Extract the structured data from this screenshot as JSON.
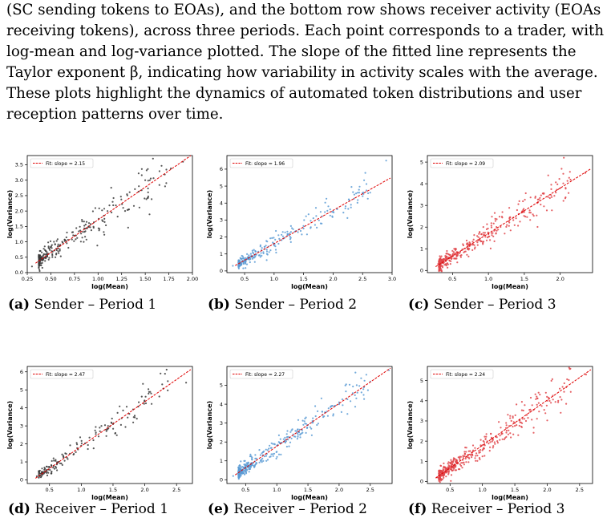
{
  "caption": {
    "text": "(SC sending tokens to EOAs), and the bottom row shows receiver activity (EOAs receiving tokens), across three periods. Each point corresponds to a trader, with log-mean and log-variance plotted. The slope of the fitted line represents the Taylor exponent β, indicating how variability in activity scales with the average. These plots highlight the dynamics of automated token distributions and user reception patterns over time."
  },
  "colors": {
    "grey": "#3a3a3a",
    "blue": "#5b9bd5",
    "red_points": "#e0454a",
    "fit_line": "#e00000"
  },
  "chart_data": [
    {
      "type": "scatter",
      "id": "a",
      "tag": "(a)",
      "label": "Sender – Period 1",
      "xlabel": "log(Mean)",
      "ylabel": "log(Variance)",
      "xlim": [
        0.25,
        2.0
      ],
      "ylim": [
        0.0,
        3.8
      ],
      "xticks": [
        "0.25",
        "0.50",
        "0.75",
        "1.00",
        "1.25",
        "1.50",
        "1.75",
        "2.00"
      ],
      "yticks": [
        "0.0",
        "0.5",
        "1.0",
        "1.5",
        "2.0",
        "2.5",
        "3.0",
        "3.5"
      ],
      "legend": "Fit: slope = 2.15",
      "legend_position": "top-left",
      "slope": 2.15,
      "intercept": -0.42,
      "point_color": "grey",
      "n_points": 260,
      "sample_points": [
        [
          0.3,
          0.2
        ],
        [
          0.45,
          0.5
        ],
        [
          0.6,
          0.9
        ],
        [
          0.75,
          1.2
        ],
        [
          0.9,
          1.5
        ],
        [
          1.1,
          2.0
        ],
        [
          1.5,
          3.0
        ],
        [
          1.9,
          3.6
        ]
      ]
    },
    {
      "type": "scatter",
      "id": "b",
      "tag": "(b)",
      "label": "Sender – Period 2",
      "xlabel": "log(Mean)",
      "ylabel": "log(Variance)",
      "xlim": [
        0.2,
        3.0
      ],
      "ylim": [
        -0.1,
        6.8
      ],
      "xticks": [
        "0.5",
        "1.0",
        "1.5",
        "2.0",
        "2.5",
        "3.0"
      ],
      "yticks": [
        "0",
        "1",
        "2",
        "3",
        "4",
        "5",
        "6"
      ],
      "legend": "Fit: slope = 1.96",
      "legend_position": "top-left",
      "slope": 1.96,
      "intercept": -0.35,
      "point_color": "blue",
      "n_points": 240,
      "sample_points": [
        [
          0.3,
          0.3
        ],
        [
          0.5,
          0.6
        ],
        [
          1.0,
          1.5
        ],
        [
          1.5,
          2.5
        ],
        [
          2.0,
          3.5
        ],
        [
          2.5,
          4.6
        ],
        [
          2.9,
          6.5
        ]
      ]
    },
    {
      "type": "scatter",
      "id": "c",
      "tag": "(c)",
      "label": "Sender – Period 3",
      "xlabel": "log(Mean)",
      "ylabel": "log(Variance)",
      "xlim": [
        0.15,
        2.45
      ],
      "ylim": [
        -0.1,
        5.3
      ],
      "xticks": [
        "0.5",
        "1.0",
        "1.5",
        "2.0"
      ],
      "yticks": [
        "0",
        "1",
        "2",
        "3",
        "4",
        "5"
      ],
      "legend": "Fit: slope = 2.09",
      "legend_position": "top-left",
      "slope": 2.09,
      "intercept": -0.38,
      "point_color": "red_points",
      "n_points": 360,
      "sample_points": [
        [
          0.3,
          0.3
        ],
        [
          0.5,
          0.7
        ],
        [
          1.0,
          1.7
        ],
        [
          1.5,
          2.7
        ],
        [
          2.0,
          3.8
        ],
        [
          2.05,
          5.2
        ],
        [
          2.35,
          4.5
        ]
      ]
    },
    {
      "type": "scatter",
      "id": "d",
      "tag": "(d)",
      "label": "Receiver – Period 1",
      "xlabel": "log(Mean)",
      "ylabel": "log(Variance)",
      "xlim": [
        0.15,
        2.75
      ],
      "ylim": [
        -0.2,
        6.3
      ],
      "xticks": [
        "0.5",
        "1.0",
        "1.5",
        "2.0",
        "2.5"
      ],
      "yticks": [
        "0",
        "1",
        "2",
        "3",
        "4",
        "5",
        "6"
      ],
      "legend": "Fit: slope = 2.47",
      "legend_position": "top-left",
      "slope": 2.47,
      "intercept": -0.6,
      "point_color": "grey",
      "n_points": 160,
      "sample_points": [
        [
          0.3,
          0.2
        ],
        [
          0.5,
          0.7
        ],
        [
          1.0,
          1.9
        ],
        [
          1.5,
          3.1
        ],
        [
          2.1,
          4.8
        ],
        [
          2.65,
          5.4
        ]
      ]
    },
    {
      "type": "scatter",
      "id": "e",
      "tag": "(e)",
      "label": "Receiver – Period 2",
      "xlabel": "log(Mean)",
      "ylabel": "log(Variance)",
      "xlim": [
        0.2,
        2.85
      ],
      "ylim": [
        -0.2,
        6.0
      ],
      "xticks": [
        "0.5",
        "1.0",
        "1.5",
        "2.0",
        "2.5"
      ],
      "yticks": [
        "0",
        "1",
        "2",
        "3",
        "4",
        "5"
      ],
      "legend": "Fit: slope = 2.27",
      "legend_position": "top-left",
      "slope": 2.27,
      "intercept": -0.5,
      "point_color": "blue",
      "n_points": 340,
      "sample_points": [
        [
          0.3,
          0.2
        ],
        [
          0.6,
          0.9
        ],
        [
          1.0,
          1.8
        ],
        [
          1.5,
          2.9
        ],
        [
          2.0,
          4.0
        ],
        [
          2.5,
          5.2
        ],
        [
          2.8,
          5.8
        ]
      ]
    },
    {
      "type": "scatter",
      "id": "f",
      "tag": "(f)",
      "label": "Receiver – Period 3",
      "xlabel": "log(Mean)",
      "ylabel": "log(Variance)",
      "xlim": [
        0.15,
        2.7
      ],
      "ylim": [
        -0.1,
        5.7
      ],
      "xticks": [
        "0.5",
        "1.0",
        "1.5",
        "2.0",
        "2.5"
      ],
      "yticks": [
        "0",
        "1",
        "2",
        "3",
        "4",
        "5"
      ],
      "legend": "Fit: slope = 2.24",
      "legend_position": "top-left",
      "slope": 2.24,
      "intercept": -0.45,
      "point_color": "red_points",
      "n_points": 420,
      "sample_points": [
        [
          0.3,
          0.2
        ],
        [
          0.6,
          0.9
        ],
        [
          1.0,
          1.8
        ],
        [
          1.5,
          2.9
        ],
        [
          2.0,
          4.0
        ],
        [
          2.6,
          5.3
        ]
      ]
    }
  ]
}
